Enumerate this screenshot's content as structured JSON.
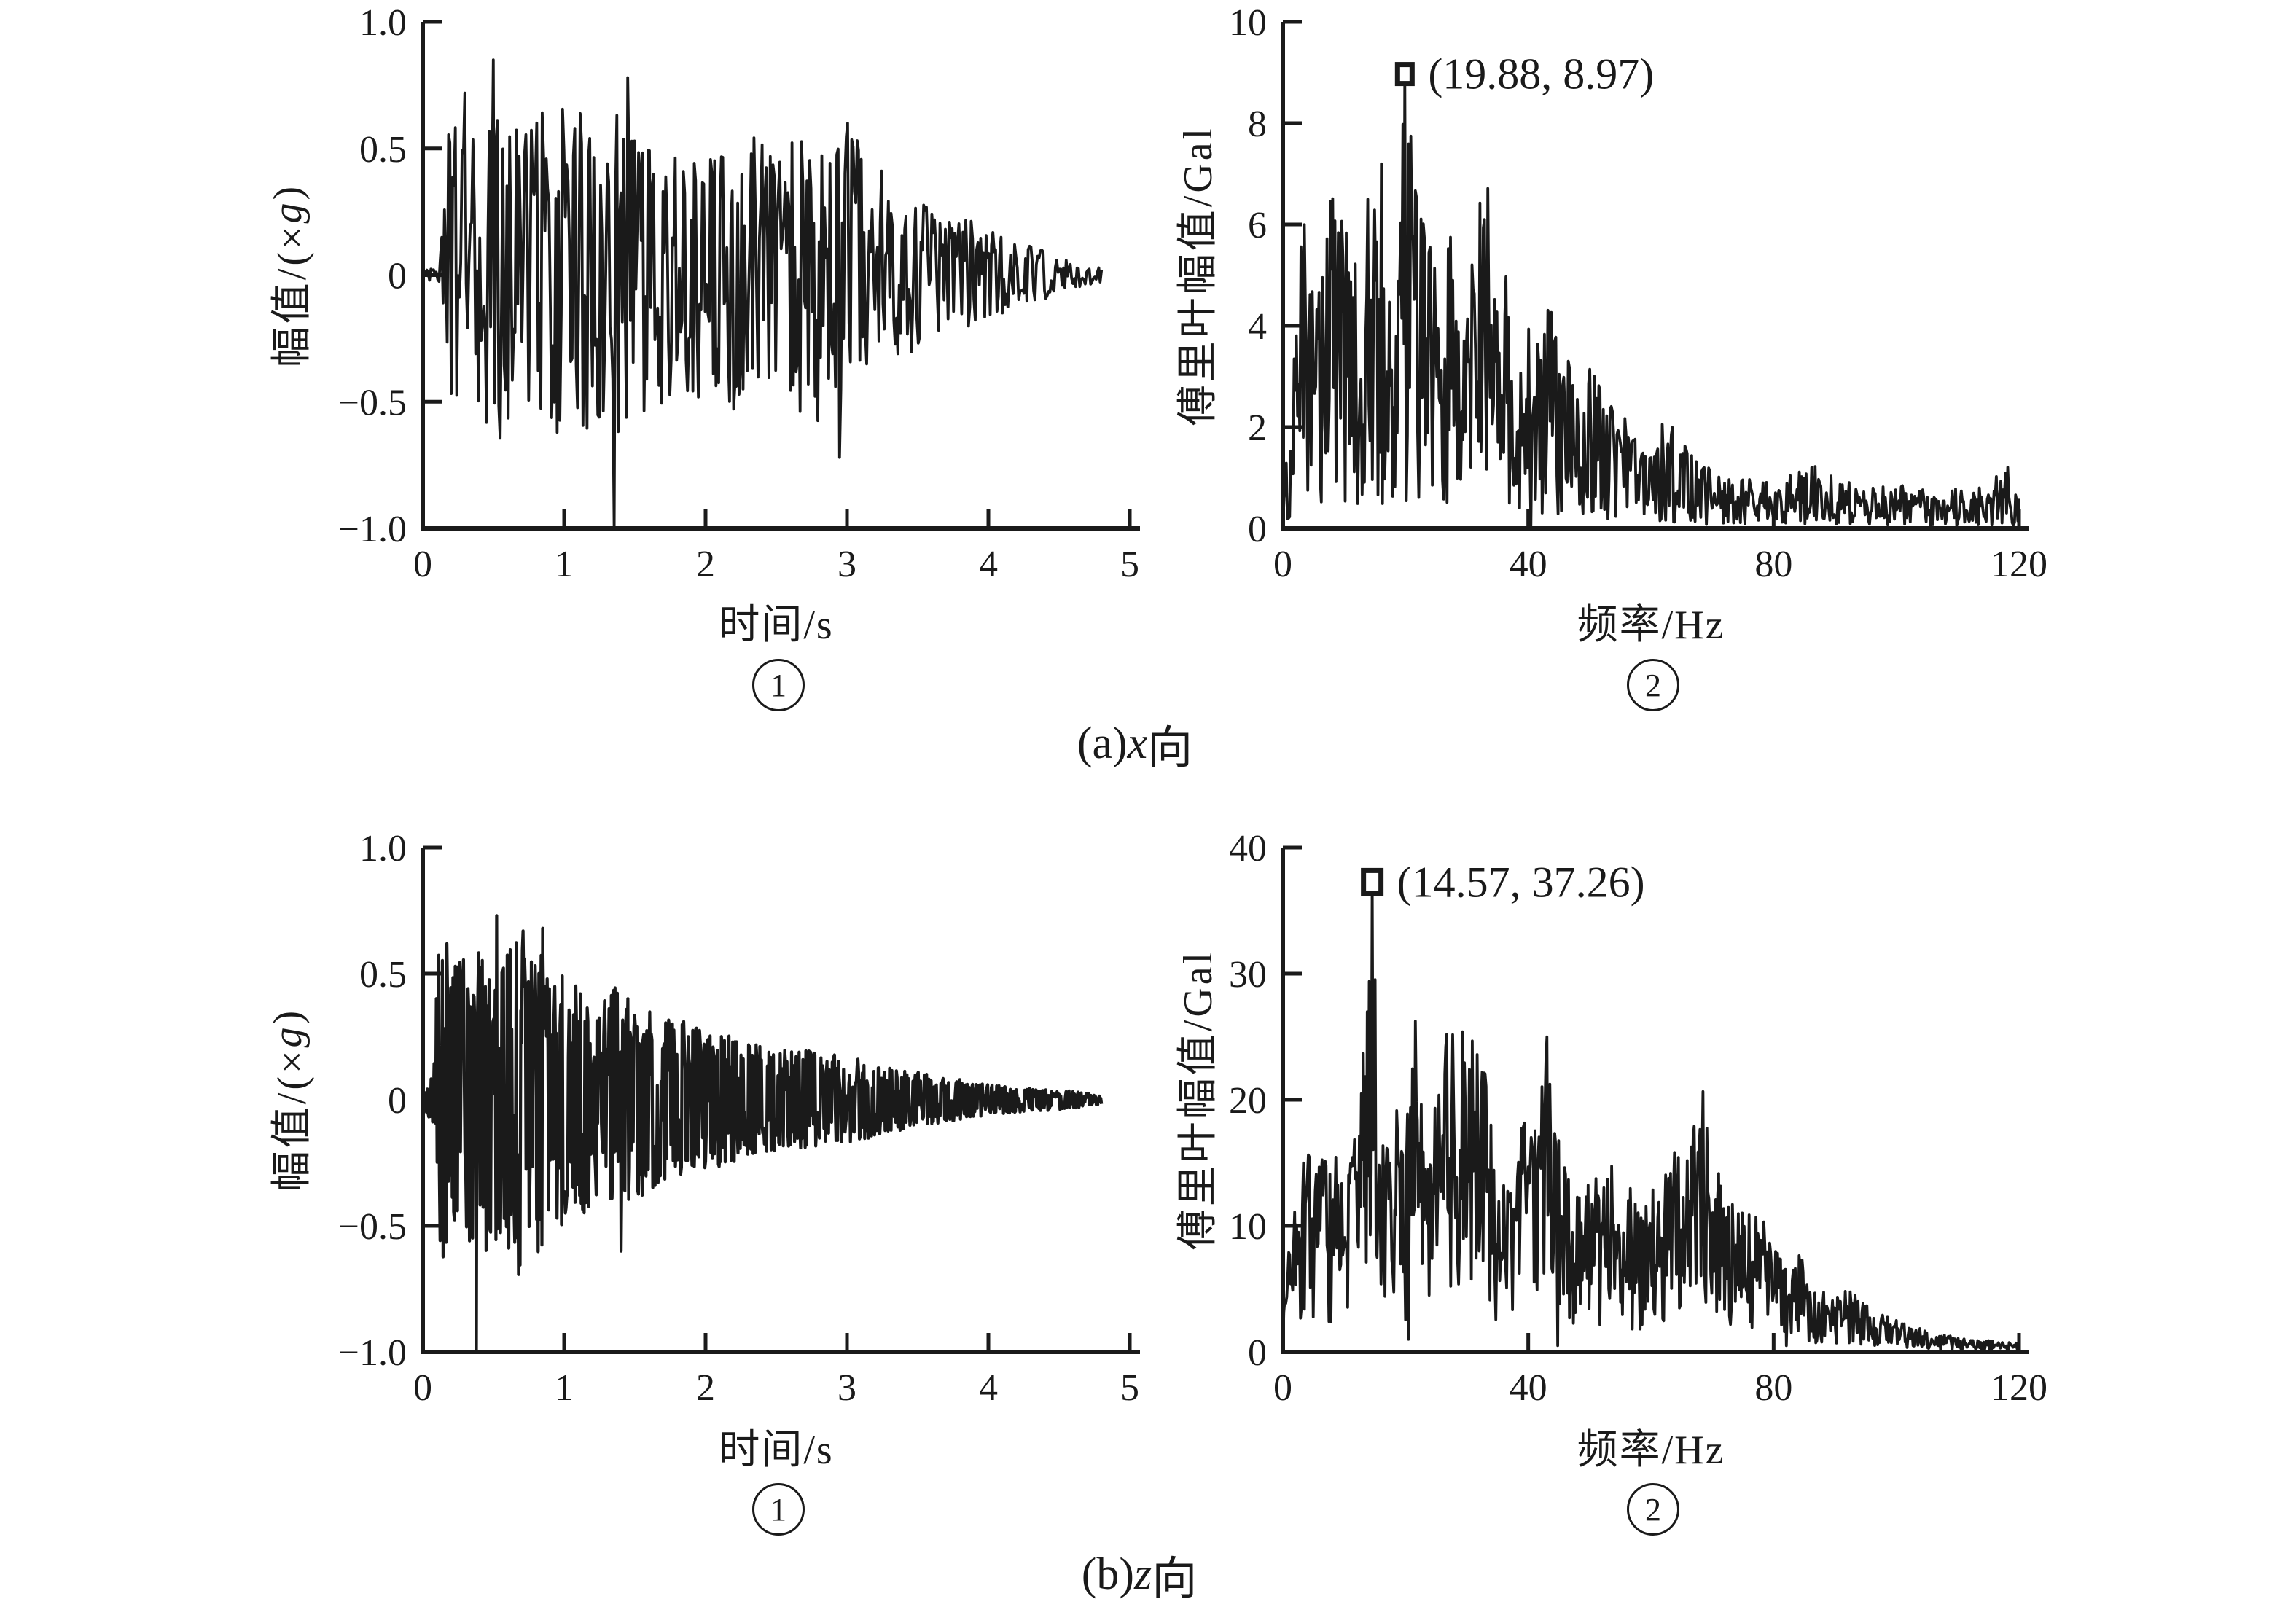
{
  "colors": {
    "ink": "#1a1a1a",
    "background": "#ffffff"
  },
  "captions": {
    "a": {
      "parts": [
        "(a)",
        "x",
        " 向"
      ],
      "full": "(a)x 向"
    },
    "b": {
      "parts": [
        "(b)",
        "z",
        " 向"
      ],
      "full": "(b)z 向"
    }
  },
  "chart_data": [
    {
      "id": "a1",
      "type": "line",
      "kind": "time",
      "title": "",
      "xlabel": "时间/s",
      "ylabel": "幅值/(×g)",
      "ylabel_parts": [
        "幅值/(×",
        "g",
        ")"
      ],
      "panel_digit": "1",
      "panel_char": "①",
      "xlim": [
        0,
        5
      ],
      "ylim": [
        -1,
        1
      ],
      "grid": false,
      "xticks": [
        [
          0,
          "0"
        ],
        [
          1,
          "1"
        ],
        [
          2,
          "2"
        ],
        [
          3,
          "3"
        ],
        [
          4,
          "4"
        ],
        [
          5,
          "5"
        ]
      ],
      "yticks": [
        [
          1.0,
          "1.0"
        ],
        [
          0.5,
          "0.5"
        ],
        [
          0,
          "0"
        ],
        [
          -0.5,
          "−0.5"
        ],
        [
          -1.0,
          "−1.0"
        ]
      ],
      "signal": {
        "description": "x-direction shaking-table acceleration time history, strong motion 0.15-3.2 s decaying to ~0 by 4.8 s; peak ≈ +0.85 g at 0.5 s, deepest spike −1.0 g at 1.35 s",
        "t_end": 4.8,
        "n": 500,
        "seed": 20240801,
        "shape": 0.75,
        "stroke": 3.8,
        "envelope": [
          [
            0,
            0.02
          ],
          [
            0.12,
            0.03
          ],
          [
            0.18,
            0.55
          ],
          [
            0.27,
            0.8
          ],
          [
            0.4,
            0.62
          ],
          [
            0.5,
            0.87
          ],
          [
            0.65,
            0.6
          ],
          [
            0.8,
            0.62
          ],
          [
            0.95,
            0.7
          ],
          [
            1.1,
            0.65
          ],
          [
            1.25,
            0.6
          ],
          [
            1.4,
            0.72
          ],
          [
            1.55,
            0.65
          ],
          [
            1.7,
            0.5
          ],
          [
            1.9,
            0.48
          ],
          [
            2.1,
            0.52
          ],
          [
            2.3,
            0.56
          ],
          [
            2.5,
            0.5
          ],
          [
            2.7,
            0.55
          ],
          [
            2.9,
            0.62
          ],
          [
            3.05,
            0.6
          ],
          [
            3.2,
            0.45
          ],
          [
            3.4,
            0.32
          ],
          [
            3.6,
            0.28
          ],
          [
            3.8,
            0.24
          ],
          [
            4.0,
            0.18
          ],
          [
            4.2,
            0.14
          ],
          [
            4.4,
            0.1
          ],
          [
            4.6,
            0.05
          ],
          [
            4.8,
            0.03
          ]
        ],
        "spikes": [
          [
            0.5,
            0.85
          ],
          [
            1.35,
            -1.0
          ],
          [
            1.45,
            0.78
          ],
          [
            2.95,
            -0.72
          ],
          [
            3.0,
            0.6
          ]
        ]
      }
    },
    {
      "id": "a2",
      "type": "line",
      "kind": "spectrum",
      "title": "",
      "xlabel": "频率/Hz",
      "ylabel": "傅里叶幅值/Gal",
      "ylabel_parts": [
        "傅里叶幅值/Gal",
        "",
        ""
      ],
      "panel_digit": "2",
      "panel_char": "②",
      "xlim": [
        0,
        120
      ],
      "ylim": [
        0,
        10
      ],
      "grid": false,
      "xticks": [
        [
          0,
          "0"
        ],
        [
          40,
          "40"
        ],
        [
          80,
          "80"
        ],
        [
          120,
          "120"
        ]
      ],
      "yticks": [
        [
          0,
          "0"
        ],
        [
          2,
          "2"
        ],
        [
          4,
          "4"
        ],
        [
          6,
          "6"
        ],
        [
          8,
          "8"
        ],
        [
          10,
          "10"
        ]
      ],
      "peak": {
        "x": 19.88,
        "y": 8.97,
        "label": "(19.88, 8.97)",
        "marker": "open-square",
        "mw": 20,
        "mh": 26
      },
      "signal": {
        "description": "Fourier amplitude spectrum of x-direction record; energy concentrated below 40 Hz, maximum 8.97 Gal at 19.88 Hz, floor ~0.5-1 Gal above 70 Hz",
        "f_end": 120,
        "n": 650,
        "seed": 90101,
        "floor": 0.06,
        "jag": 1.1,
        "stroke": 3.8,
        "envelope": [
          [
            0,
            0.2
          ],
          [
            1,
            2.5
          ],
          [
            3,
            6.8
          ],
          [
            5,
            5.5
          ],
          [
            7,
            7.2
          ],
          [
            9,
            6.0
          ],
          [
            12,
            6.5
          ],
          [
            15,
            7.5
          ],
          [
            18,
            8.2
          ],
          [
            19.88,
            9.0
          ],
          [
            22,
            7.0
          ],
          [
            25,
            6.0
          ],
          [
            28,
            6.5
          ],
          [
            30,
            6.2
          ],
          [
            33,
            7.0
          ],
          [
            35,
            6.0
          ],
          [
            38,
            4.5
          ],
          [
            40,
            4.0
          ],
          [
            42,
            4.6
          ],
          [
            45,
            4.2
          ],
          [
            48,
            3.6
          ],
          [
            50,
            3.2
          ],
          [
            53,
            2.6
          ],
          [
            56,
            2.2
          ],
          [
            58,
            1.8
          ],
          [
            60,
            1.6
          ],
          [
            62,
            2.3
          ],
          [
            64,
            2.0
          ],
          [
            67,
            1.4
          ],
          [
            70,
            1.2
          ],
          [
            75,
            1.0
          ],
          [
            80,
            0.9
          ],
          [
            83,
            1.1
          ],
          [
            86,
            1.3
          ],
          [
            90,
            1.0
          ],
          [
            95,
            0.8
          ],
          [
            100,
            0.9
          ],
          [
            105,
            0.8
          ],
          [
            110,
            0.8
          ],
          [
            115,
            0.9
          ],
          [
            118,
            1.3
          ],
          [
            120,
            0.6
          ]
        ],
        "dips": [
          [
            40.5,
            0.05
          ]
        ]
      }
    },
    {
      "id": "b1",
      "type": "line",
      "kind": "time",
      "title": "",
      "xlabel": "时间/s",
      "ylabel": "幅值/(×g)",
      "ylabel_parts": [
        "幅值/(×",
        "g",
        ")"
      ],
      "panel_digit": "1",
      "panel_char": "①",
      "xlim": [
        0,
        5
      ],
      "ylim": [
        -1,
        1
      ],
      "grid": false,
      "xticks": [
        [
          0,
          "0"
        ],
        [
          1,
          "1"
        ],
        [
          2,
          "2"
        ],
        [
          3,
          "3"
        ],
        [
          4,
          "4"
        ],
        [
          5,
          "5"
        ]
      ],
      "yticks": [
        [
          1.0,
          "1.0"
        ],
        [
          0.5,
          "0.5"
        ],
        [
          0,
          "0"
        ],
        [
          -0.5,
          "−0.5"
        ],
        [
          -1.0,
          "−1.0"
        ]
      ],
      "signal": {
        "description": "z-direction acceleration time history, very dense band ±0.7 g during 0.1-1 s decaying steadily to ~0 by 4.8 s; deepest spike −1.0 g at 0.4 s, peak ≈ +0.73 g at 0.5 s",
        "t_end": 4.8,
        "n": 900,
        "seed": 512377,
        "shape": 0.55,
        "stroke": 4.2,
        "envelope": [
          [
            0,
            0.02
          ],
          [
            0.07,
            0.1
          ],
          [
            0.12,
            0.68
          ],
          [
            0.2,
            0.6
          ],
          [
            0.3,
            0.55
          ],
          [
            0.4,
            0.62
          ],
          [
            0.5,
            0.6
          ],
          [
            0.6,
            0.68
          ],
          [
            0.7,
            0.7
          ],
          [
            0.8,
            0.62
          ],
          [
            0.9,
            0.55
          ],
          [
            1.0,
            0.5
          ],
          [
            1.1,
            0.48
          ],
          [
            1.2,
            0.42
          ],
          [
            1.35,
            0.45
          ],
          [
            1.5,
            0.4
          ],
          [
            1.65,
            0.35
          ],
          [
            1.8,
            0.32
          ],
          [
            2.0,
            0.28
          ],
          [
            2.2,
            0.25
          ],
          [
            2.4,
            0.22
          ],
          [
            2.6,
            0.2
          ],
          [
            2.8,
            0.19
          ],
          [
            3.0,
            0.17
          ],
          [
            3.2,
            0.15
          ],
          [
            3.4,
            0.12
          ],
          [
            3.6,
            0.1
          ],
          [
            3.8,
            0.08
          ],
          [
            4.0,
            0.06
          ],
          [
            4.2,
            0.05
          ],
          [
            4.5,
            0.04
          ],
          [
            4.8,
            0.02
          ]
        ],
        "spikes": [
          [
            0.38,
            -1.0
          ],
          [
            0.52,
            0.73
          ],
          [
            0.85,
            0.68
          ],
          [
            1.4,
            -0.6
          ]
        ]
      }
    },
    {
      "id": "b2",
      "type": "line",
      "kind": "spectrum",
      "title": "",
      "xlabel": "频率/Hz",
      "ylabel": "傅里叶幅值/Gal",
      "ylabel_parts": [
        "傅里叶幅值/Gal",
        "",
        ""
      ],
      "panel_digit": "2",
      "panel_char": "②",
      "xlim": [
        0,
        120
      ],
      "ylim": [
        0,
        40
      ],
      "grid": false,
      "xticks": [
        [
          0,
          "0"
        ],
        [
          40,
          "40"
        ],
        [
          80,
          "80"
        ],
        [
          120,
          "120"
        ]
      ],
      "yticks": [
        [
          0,
          "0"
        ],
        [
          10,
          "10"
        ],
        [
          20,
          "20"
        ],
        [
          30,
          "30"
        ],
        [
          40,
          "40"
        ]
      ],
      "peak": {
        "x": 14.57,
        "y": 37.26,
        "label": "(14.57, 37.26)",
        "marker": "open-square",
        "mw": 24,
        "mh": 32
      },
      "signal": {
        "description": "Fourier amplitude spectrum of z-direction record; broad energy 0-80 Hz mostly 5-30 Gal, maximum 37.26 Gal at 14.57 Hz, secondary peaks ~29-30 Gal near 22, 28-32 and 43 Hz, decaying to ~1 Gal above 105 Hz",
        "f_end": 120,
        "n": 750,
        "seed": 331109,
        "floor": 0.12,
        "jag": 0.8,
        "stroke": 3.8,
        "envelope": [
          [
            0,
            8
          ],
          [
            2,
            13
          ],
          [
            4,
            16
          ],
          [
            6,
            15
          ],
          [
            8,
            17
          ],
          [
            10,
            16
          ],
          [
            12,
            18
          ],
          [
            14.57,
            37.3
          ],
          [
            16,
            18
          ],
          [
            18,
            20
          ],
          [
            20,
            17
          ],
          [
            22,
            30
          ],
          [
            24,
            20
          ],
          [
            26,
            24
          ],
          [
            28,
            29
          ],
          [
            30,
            25
          ],
          [
            31,
            29.5
          ],
          [
            33,
            22
          ],
          [
            35,
            14
          ],
          [
            37,
            13
          ],
          [
            40,
            21
          ],
          [
            42,
            25
          ],
          [
            43.5,
            29
          ],
          [
            45,
            18
          ],
          [
            47,
            13
          ],
          [
            50,
            14
          ],
          [
            53,
            15
          ],
          [
            56,
            14
          ],
          [
            58,
            12
          ],
          [
            60,
            15
          ],
          [
            62,
            14
          ],
          [
            65,
            17
          ],
          [
            67,
            20
          ],
          [
            68.5,
            21.8
          ],
          [
            70,
            16
          ],
          [
            72,
            13
          ],
          [
            75,
            11
          ],
          [
            78,
            12
          ],
          [
            80,
            8.5
          ],
          [
            82,
            7
          ],
          [
            84,
            9
          ],
          [
            86,
            6
          ],
          [
            88,
            5
          ],
          [
            90,
            4.5
          ],
          [
            93,
            5.5
          ],
          [
            95,
            4
          ],
          [
            98,
            3
          ],
          [
            100,
            2.5
          ],
          [
            103,
            2
          ],
          [
            106,
            1.5
          ],
          [
            110,
            1.2
          ],
          [
            114,
            1
          ],
          [
            117,
            0.8
          ],
          [
            120,
            0.7
          ]
        ],
        "dips": [
          [
            20.5,
            1
          ],
          [
            44.8,
            0.5
          ],
          [
            82,
            0.5
          ]
        ]
      }
    }
  ]
}
